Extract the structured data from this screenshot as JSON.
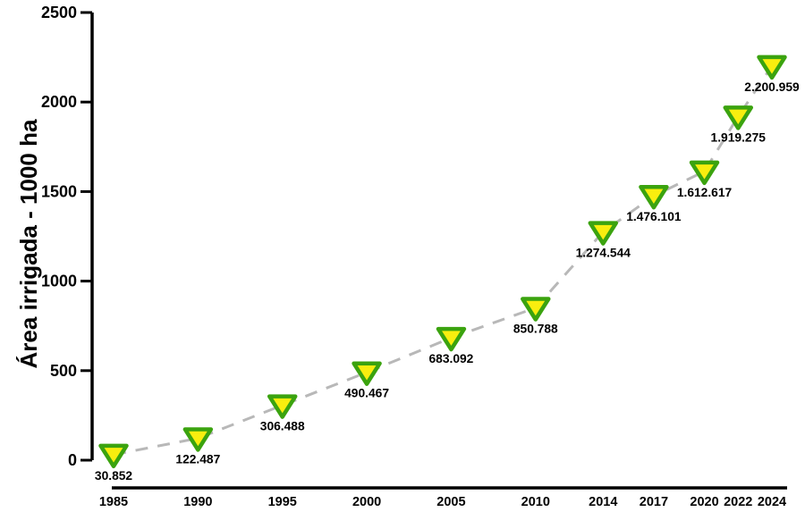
{
  "page": {
    "background": "#ffffff"
  },
  "chart_data": {
    "type": "line",
    "title": "",
    "xlabel": "",
    "ylabel": "Área irrigada - 1000 ha",
    "x": [
      1985,
      1990,
      1995,
      2000,
      2005,
      2010,
      2014,
      2017,
      2020,
      2022,
      2024
    ],
    "x_tick_labels": [
      "1985",
      "1990",
      "1995",
      "2000",
      "2005",
      "2010",
      "2014",
      "2017",
      "2020",
      "2022",
      "2024"
    ],
    "series": [
      {
        "name": "Área irrigada",
        "values": [
          30.852,
          122.487,
          306.488,
          490.467,
          683.092,
          850.788,
          1274.544,
          1476.101,
          1612.617,
          1919.275,
          2200.959
        ],
        "point_labels": [
          "30.852",
          "122.487",
          "306.488",
          "490.467",
          "683.092",
          "850.788",
          "1.274.544",
          "1.476.101",
          "1.612.617",
          "1.919.275",
          "2.200.959"
        ]
      }
    ],
    "y_ticks": [
      "0",
      "500",
      "1000",
      "1500",
      "2000",
      "2500"
    ],
    "y_tick_values": [
      0,
      500,
      1000,
      1500,
      2000,
      2500
    ],
    "ylim": [
      0,
      2500
    ],
    "xlim": [
      1985,
      2024
    ],
    "grid": false,
    "legend_position": "none",
    "marker": "triangle-down",
    "line_style": "dashed"
  },
  "colors": {
    "marker_fill": "#F8EE0F",
    "marker_stroke": "#3BA30F",
    "line": "#B8B8B8",
    "axis": "#000000",
    "text": "#000000"
  }
}
